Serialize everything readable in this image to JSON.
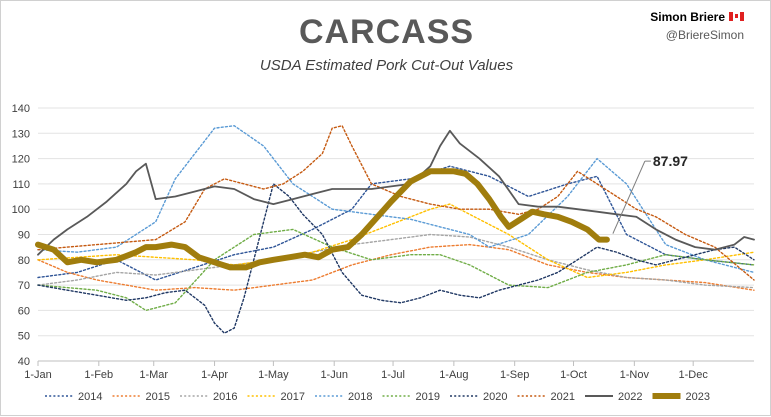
{
  "header": {
    "title": "CARCASS",
    "subtitle": "USDA Estimated Pork Cut-Out Values",
    "author_name": "Simon Briere",
    "author_handle": "@BriereSimon",
    "flag_icon": "canada-flag-icon"
  },
  "chart_data": {
    "type": "line",
    "title": "CARCASS",
    "subtitle": "USDA Estimated Pork Cut-Out Values",
    "xlabel": "",
    "ylabel": "",
    "xlim": [
      0,
      365
    ],
    "ylim": [
      40,
      140
    ],
    "yticks": [
      40,
      50,
      60,
      70,
      80,
      90,
      100,
      110,
      120,
      130,
      140
    ],
    "xticks": [
      {
        "label": "1-Jan",
        "day": 0
      },
      {
        "label": "1-Feb",
        "day": 31
      },
      {
        "label": "1-Mar",
        "day": 59
      },
      {
        "label": "1-Apr",
        "day": 90
      },
      {
        "label": "1-May",
        "day": 120
      },
      {
        "label": "1-Jun",
        "day": 151
      },
      {
        "label": "1-Jul",
        "day": 181
      },
      {
        "label": "1-Aug",
        "day": 212
      },
      {
        "label": "1-Sep",
        "day": 243
      },
      {
        "label": "1-Oct",
        "day": 273
      },
      {
        "label": "1-Nov",
        "day": 304
      },
      {
        "label": "1-Dec",
        "day": 334
      }
    ],
    "grid": true,
    "legend_position": "bottom",
    "annotation": {
      "text": "87.97",
      "series": "2023",
      "day": 290,
      "value": 87.97
    },
    "series": [
      {
        "name": "2014",
        "color": "#2f5597",
        "style": "dotted",
        "x": [
          0,
          20,
          40,
          60,
          80,
          100,
          120,
          140,
          160,
          170,
          190,
          210,
          230,
          250,
          270,
          285,
          300,
          320,
          340,
          365
        ],
        "y": [
          73,
          75,
          80,
          72,
          77,
          82,
          85,
          92,
          100,
          110,
          112,
          117,
          113,
          105,
          110,
          113,
          90,
          82,
          80,
          78
        ]
      },
      {
        "name": "2015",
        "color": "#ed7d31",
        "style": "dotted",
        "x": [
          0,
          15,
          30,
          45,
          60,
          80,
          100,
          120,
          140,
          160,
          180,
          200,
          220,
          240,
          260,
          280,
          300,
          320,
          340,
          365
        ],
        "y": [
          80,
          75,
          72,
          70,
          68,
          69,
          68,
          70,
          72,
          78,
          82,
          85,
          86,
          84,
          78,
          75,
          73,
          72,
          71,
          68
        ]
      },
      {
        "name": "2016",
        "color": "#a5a5a5",
        "style": "dotted",
        "x": [
          0,
          20,
          40,
          60,
          80,
          100,
          120,
          140,
          160,
          180,
          200,
          220,
          240,
          260,
          280,
          300,
          320,
          340,
          365
        ],
        "y": [
          70,
          72,
          75,
          74,
          76,
          78,
          80,
          83,
          86,
          88,
          90,
          89,
          85,
          80,
          76,
          73,
          72,
          70,
          69
        ]
      },
      {
        "name": "2017",
        "color": "#ffc000",
        "style": "dotted",
        "x": [
          0,
          20,
          40,
          60,
          80,
          100,
          120,
          140,
          160,
          180,
          200,
          210,
          220,
          240,
          260,
          280,
          300,
          320,
          340,
          365
        ],
        "y": [
          80,
          81,
          82,
          81,
          80,
          78,
          80,
          83,
          88,
          94,
          100,
          102,
          98,
          90,
          80,
          73,
          75,
          78,
          80,
          83
        ]
      },
      {
        "name": "2018",
        "color": "#5b9bd5",
        "style": "dotted",
        "x": [
          0,
          20,
          40,
          60,
          70,
          90,
          100,
          115,
          130,
          150,
          170,
          190,
          210,
          220,
          230,
          250,
          270,
          285,
          300,
          320,
          340,
          365
        ],
        "y": [
          84,
          83,
          85,
          95,
          112,
          132,
          133,
          125,
          110,
          100,
          98,
          96,
          92,
          90,
          85,
          90,
          105,
          120,
          110,
          86,
          80,
          75
        ]
      },
      {
        "name": "2019",
        "color": "#70ad47",
        "style": "dotted",
        "x": [
          0,
          15,
          30,
          45,
          55,
          70,
          90,
          110,
          130,
          150,
          170,
          190,
          205,
          220,
          240,
          260,
          280,
          300,
          320,
          340,
          365
        ],
        "y": [
          70,
          69,
          68,
          65,
          60,
          63,
          80,
          90,
          92,
          85,
          80,
          82,
          82,
          78,
          70,
          69,
          75,
          78,
          82,
          80,
          78
        ]
      },
      {
        "name": "2020",
        "color": "#203864",
        "style": "dotted",
        "x": [
          0,
          15,
          30,
          45,
          55,
          65,
          75,
          85,
          90,
          95,
          100,
          105,
          110,
          115,
          120,
          128,
          135,
          145,
          155,
          165,
          175,
          185,
          195,
          205,
          215,
          225,
          235,
          245,
          255,
          265,
          275,
          285,
          295,
          305,
          315,
          325,
          335,
          345,
          355,
          365
        ],
        "y": [
          70,
          68,
          66,
          64,
          65,
          67,
          68,
          62,
          55,
          51,
          53,
          65,
          80,
          95,
          110,
          105,
          98,
          90,
          75,
          66,
          64,
          63,
          65,
          68,
          66,
          65,
          68,
          70,
          72,
          75,
          80,
          85,
          83,
          80,
          78,
          80,
          82,
          84,
          85,
          80
        ]
      },
      {
        "name": "2021",
        "color": "#c55a11",
        "style": "dotted",
        "x": [
          0,
          15,
          30,
          45,
          60,
          75,
          85,
          95,
          105,
          115,
          125,
          135,
          145,
          150,
          155,
          160,
          170,
          185,
          200,
          215,
          230,
          245,
          255,
          265,
          275,
          285,
          295,
          305,
          315,
          330,
          345,
          365
        ],
        "y": [
          84,
          85,
          86,
          87,
          88,
          95,
          108,
          112,
          110,
          108,
          110,
          115,
          122,
          132,
          133,
          125,
          110,
          105,
          102,
          100,
          100,
          98,
          100,
          105,
          115,
          110,
          105,
          100,
          97,
          90,
          85,
          72
        ]
      },
      {
        "name": "2022",
        "color": "#595959",
        "style": "solid",
        "x": [
          0,
          8,
          15,
          25,
          35,
          45,
          50,
          55,
          60,
          70,
          80,
          90,
          100,
          110,
          120,
          130,
          140,
          150,
          160,
          170,
          180,
          190,
          200,
          205,
          210,
          215,
          225,
          235,
          245,
          255,
          265,
          275,
          285,
          295,
          305,
          315,
          325,
          335,
          345,
          355,
          360,
          365
        ],
        "y": [
          82,
          88,
          92,
          97,
          103,
          110,
          115,
          118,
          104,
          105,
          107,
          109,
          108,
          104,
          102,
          104,
          106,
          108,
          108,
          108,
          109,
          110,
          117,
          125,
          131,
          126,
          120,
          113,
          102,
          101,
          101,
          100,
          99,
          98,
          97,
          92,
          88,
          85,
          84,
          86,
          89,
          88
        ]
      },
      {
        "name": "2023",
        "color": "#a07d0d",
        "style": "solid-thick",
        "x": [
          0,
          8,
          15,
          22,
          30,
          40,
          50,
          55,
          60,
          68,
          75,
          82,
          90,
          98,
          106,
          113,
          120,
          128,
          136,
          143,
          150,
          158,
          165,
          172,
          180,
          190,
          200,
          206,
          212,
          218,
          224,
          230,
          236,
          240,
          246,
          252,
          258,
          265,
          272,
          280,
          286,
          290
        ],
        "y": [
          86,
          84,
          79,
          80,
          79,
          80,
          83,
          85,
          85,
          86,
          85,
          81,
          79,
          77,
          77,
          79,
          80,
          81,
          82,
          81,
          84,
          85,
          90,
          96,
          103,
          111,
          115,
          115,
          115,
          114,
          110,
          104,
          97,
          93,
          96,
          99,
          98,
          97,
          95,
          92,
          88,
          87.97
        ]
      }
    ]
  }
}
